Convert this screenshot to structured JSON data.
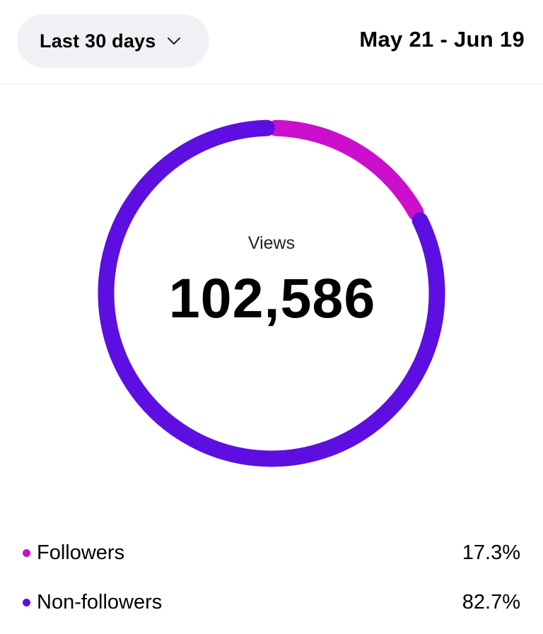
{
  "header": {
    "range_selector_label": "Last 30 days",
    "date_range": "May 21 - Jun 19"
  },
  "summary": {
    "label": "Views",
    "value": "102,586"
  },
  "chart_data": {
    "type": "pie",
    "categories": [
      "Followers",
      "Non-followers"
    ],
    "values": [
      17.3,
      82.7
    ],
    "colors": [
      "#cc0fcc",
      "#5c0fe0"
    ],
    "value_labels": [
      "17.3%",
      "82.7%"
    ]
  },
  "legend": [
    {
      "name": "Followers",
      "percent": "17.3%"
    },
    {
      "name": "Non-followers",
      "percent": "82.7%"
    }
  ],
  "icons": {
    "dropdown": "chevron-down-icon"
  }
}
